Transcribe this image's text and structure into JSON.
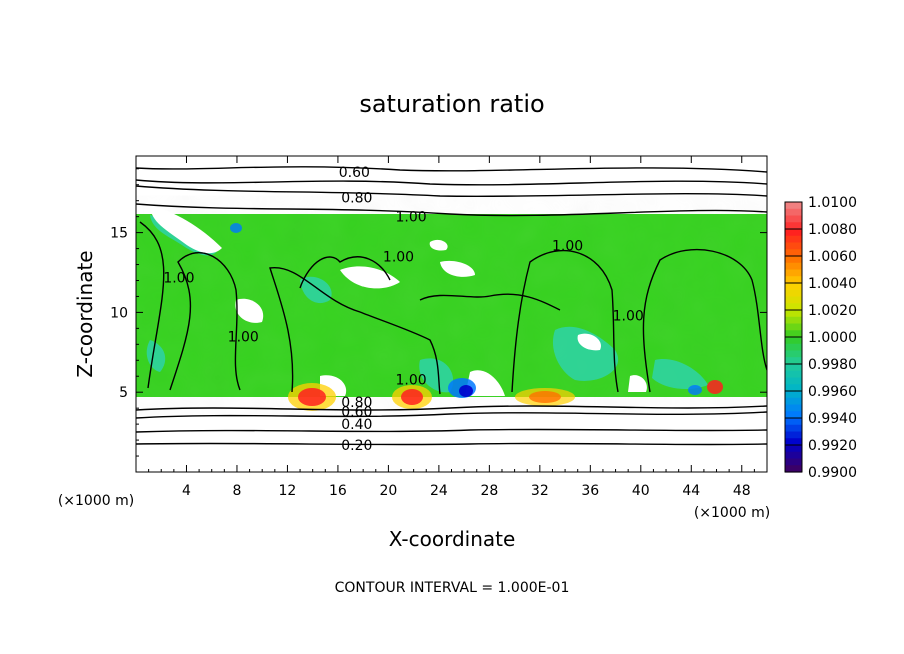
{
  "chart_data": {
    "type": "heatmap",
    "title": "saturation ratio",
    "xlabel": "X-coordinate",
    "ylabel": "Z-coordinate",
    "x_unit": "(×1000 m)",
    "y_unit": "(×1000 m)",
    "footer": "CONTOUR INTERVAL = 1.000E-01",
    "xlim": [
      0,
      50
    ],
    "ylim": [
      0,
      19.8
    ],
    "x_ticks": [
      4,
      8,
      12,
      16,
      20,
      24,
      28,
      32,
      36,
      40,
      44,
      48
    ],
    "y_ticks": [
      5,
      10,
      15
    ],
    "colorbar": {
      "min": 0.99,
      "max": 1.01,
      "ticks": [
        "1.0100",
        "1.0080",
        "1.0060",
        "1.0040",
        "1.0020",
        "1.0000",
        "0.9980",
        "0.9960",
        "0.9940",
        "0.9920",
        "0.9900"
      ],
      "colors": [
        "#f08080",
        "#ff2020",
        "#ff7000",
        "#ffd000",
        "#c8e600",
        "#33cc22",
        "#22cc99",
        "#00b4c8",
        "#0078ff",
        "#0000cc",
        "#3a0068"
      ]
    },
    "field": {
      "cloud_layer_z": [
        4.8,
        16.2
      ],
      "dominant_value": 1.0005
    },
    "contour_labels": [
      {
        "label": "0.60",
        "x": 17.3,
        "z": 18.8
      },
      {
        "label": "0.80",
        "x": 17.5,
        "z": 17.2
      },
      {
        "label": "1.00",
        "x": 21.8,
        "z": 16.0
      },
      {
        "label": "1.00",
        "x": 34.2,
        "z": 14.2
      },
      {
        "label": "1.00",
        "x": 3.4,
        "z": 12.2
      },
      {
        "label": "1.00",
        "x": 20.8,
        "z": 13.5
      },
      {
        "label": "1.00",
        "x": 8.5,
        "z": 8.5
      },
      {
        "label": "1.00",
        "x": 39.0,
        "z": 9.8
      },
      {
        "label": "1.00",
        "x": 21.8,
        "z": 5.8
      },
      {
        "label": "0.80",
        "x": 17.5,
        "z": 4.4
      },
      {
        "label": "0.60",
        "x": 17.5,
        "z": 3.8
      },
      {
        "label": "0.40",
        "x": 17.5,
        "z": 3.0
      },
      {
        "label": "0.20",
        "x": 17.5,
        "z": 1.7
      }
    ]
  }
}
